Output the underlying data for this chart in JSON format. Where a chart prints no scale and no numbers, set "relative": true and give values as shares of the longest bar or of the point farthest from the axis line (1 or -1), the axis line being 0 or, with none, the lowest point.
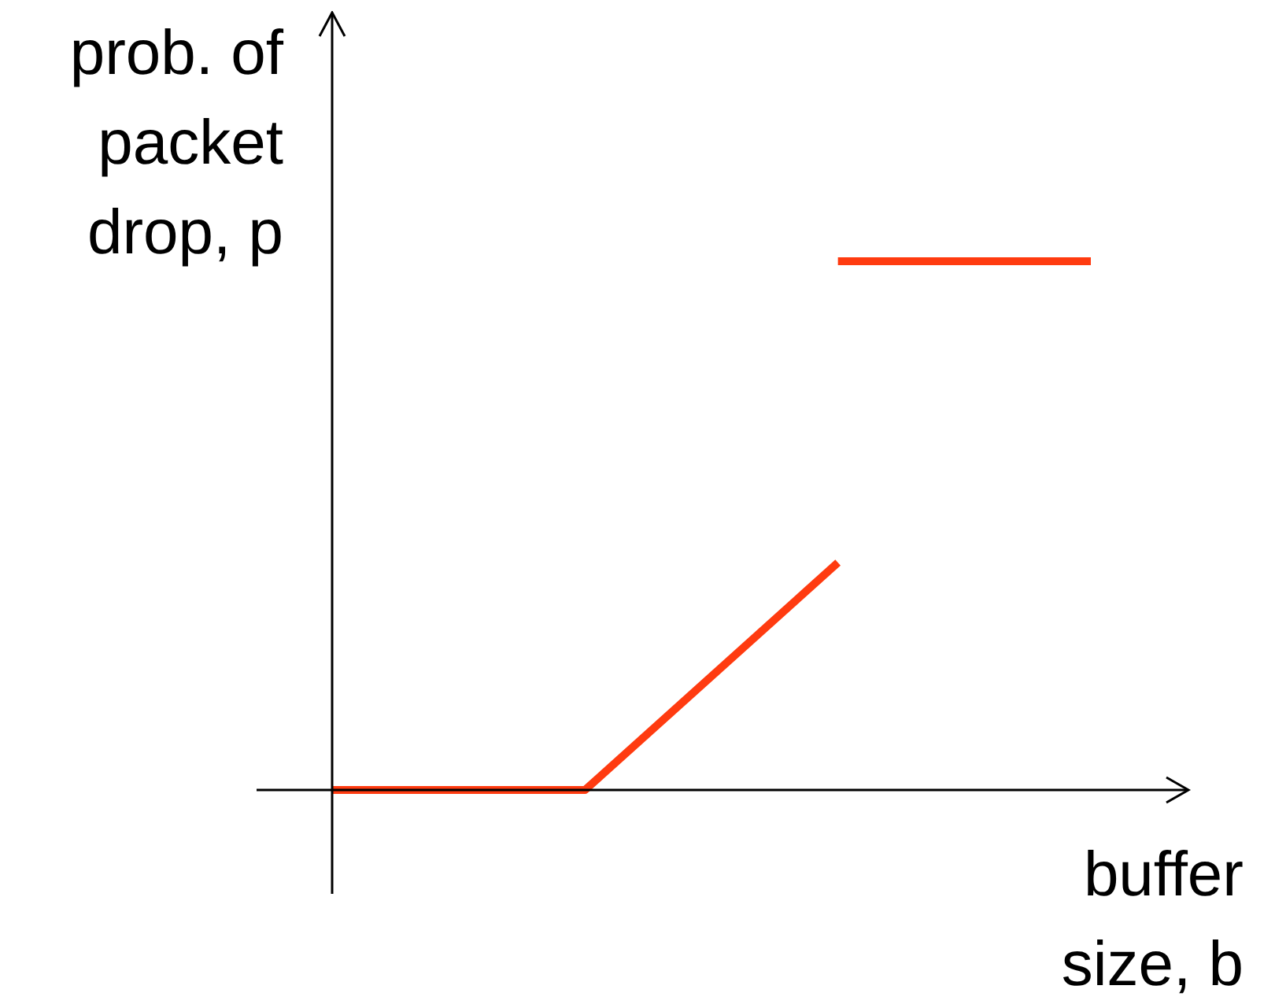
{
  "chart_data": {
    "type": "line",
    "relative": true,
    "xlabel": "buffer size, b",
    "ylabel": "prob. of packet drop, p",
    "legend": false,
    "marker": "none",
    "line_style": "solid",
    "categories": [
      null,
      null,
      null,
      null
    ],
    "series": [
      {
        "color": "#ff3b10",
        "values": [
          0,
          0,
          0.43,
          null
        ]
      },
      {
        "color": "#ff3b10",
        "values": [
          null,
          null,
          1,
          1
        ]
      }
    ]
  }
}
